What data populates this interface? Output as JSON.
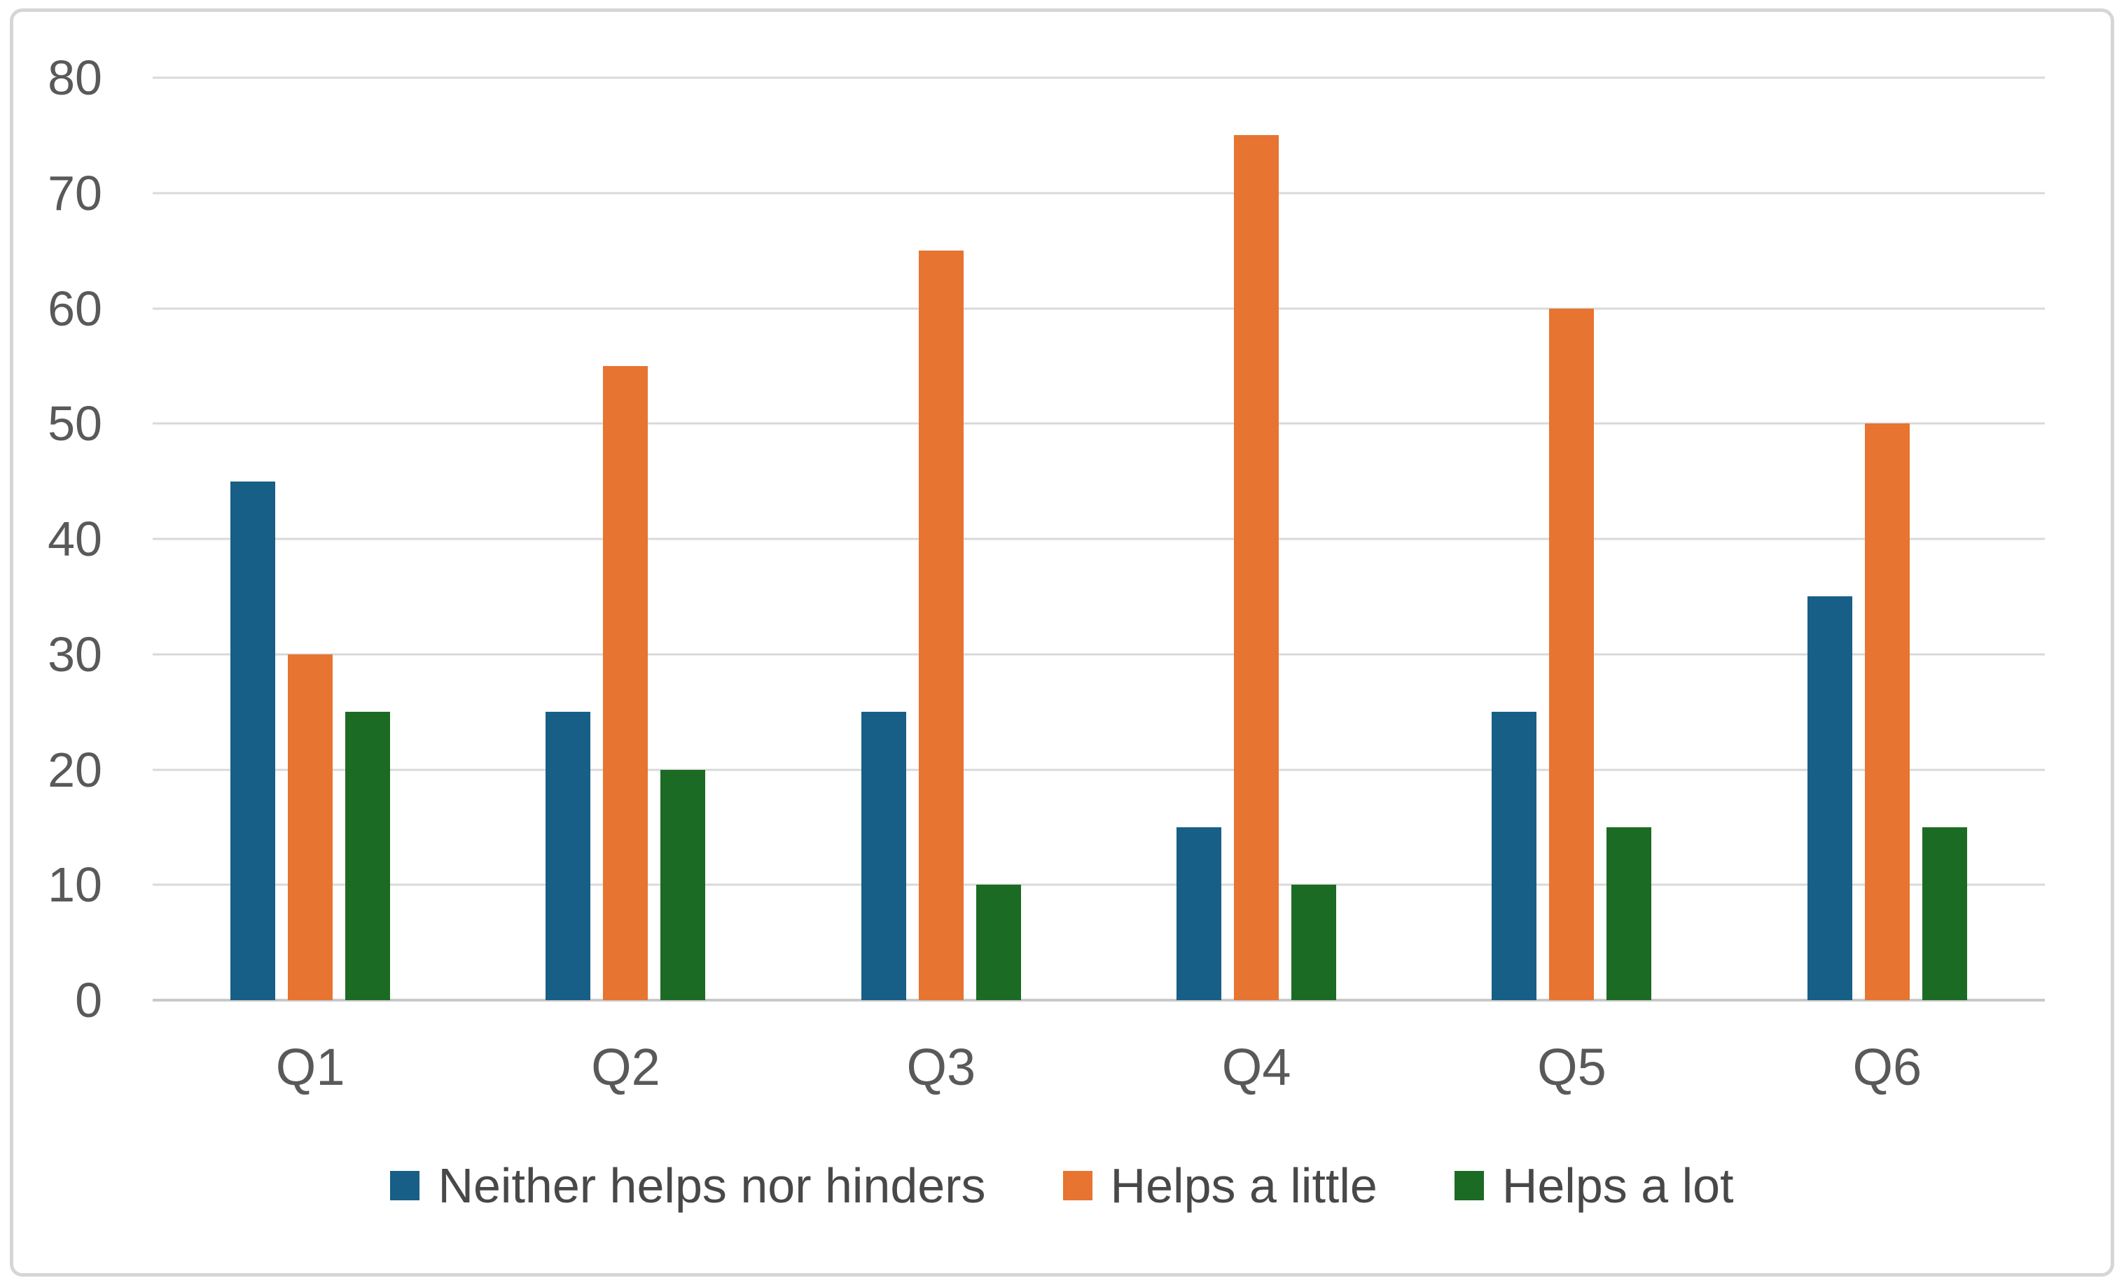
{
  "chart_data": {
    "type": "bar",
    "title": "",
    "xlabel": "",
    "ylabel": "",
    "categories": [
      "Q1",
      "Q2",
      "Q3",
      "Q4",
      "Q5",
      "Q6"
    ],
    "series": [
      {
        "name": "Neither helps nor hinders",
        "color": "#175f86",
        "values": [
          45,
          25,
          25,
          15,
          25,
          35
        ]
      },
      {
        "name": "Helps a little",
        "color": "#e77430",
        "values": [
          30,
          55,
          65,
          75,
          60,
          50
        ]
      },
      {
        "name": "Helps a lot",
        "color": "#1c6b24",
        "values": [
          25,
          20,
          10,
          10,
          15,
          15
        ]
      }
    ],
    "ylim": [
      0,
      80
    ],
    "ytick_step": 10,
    "yticks": [
      "0",
      "10",
      "20",
      "30",
      "40",
      "50",
      "60",
      "70",
      "80"
    ],
    "grid": "horizontal",
    "legend_position": "bottom"
  },
  "style": {
    "background_color": "#ffffff",
    "border_color": "#d6d6d6",
    "gridline_color": "#d9d9d9",
    "axis_line_color": "#c9c9c9",
    "tick_label_color": "#595959",
    "legend_text_color": "#484848"
  }
}
